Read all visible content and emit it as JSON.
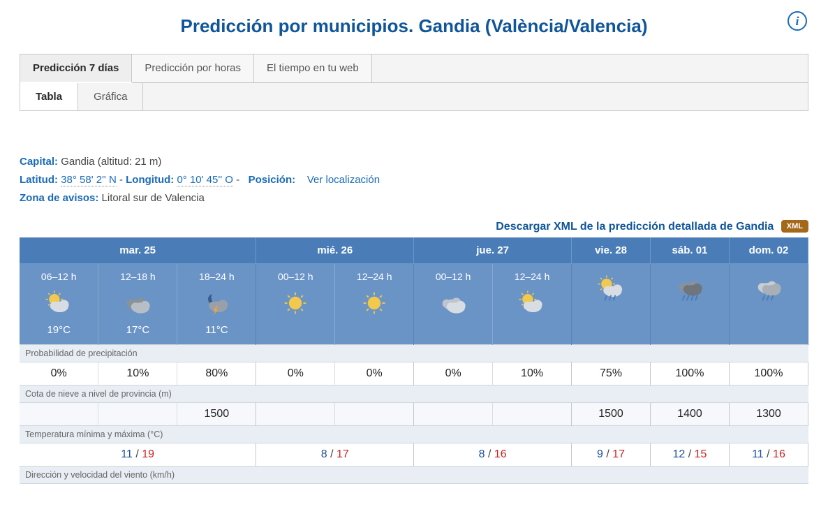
{
  "title": "Predicción por municipios. Gandia (València/Valencia)",
  "colors": {
    "primary": "#10559a",
    "header_bg": "#4a7db8",
    "slot_bg": "#6b94c6",
    "section_bg": "#e8eef4",
    "xml_badge": "#a4681b"
  },
  "tabs": {
    "main": [
      {
        "label": "Predicción 7 días",
        "active": true
      },
      {
        "label": "Predicción por horas",
        "active": false
      },
      {
        "label": "El tiempo en tu web",
        "active": false
      }
    ],
    "sub": [
      {
        "label": "Tabla",
        "active": true
      },
      {
        "label": "Gráfica",
        "active": false
      }
    ]
  },
  "meta": {
    "capital_label": "Capital:",
    "capital_value": "Gandia (altitud: 21 m)",
    "lat_label": "Latitud:",
    "lat_value": "38° 58' 2'' N",
    "lon_label": "Longitud:",
    "lon_value": "0° 10' 45'' O",
    "pos_label": "Posición:",
    "pos_link": "Ver localización",
    "zone_label": "Zona de avisos:",
    "zone_value": "Litoral sur de Valencia"
  },
  "xml_link_text": "Descargar XML de la predicción detallada de Gandia",
  "xml_badge": "XML",
  "section_labels": {
    "precip": "Probabilidad de precipitación",
    "snow": "Cota de nieve a nivel de provincia (m)",
    "temp": "Temperatura mínima y máxima (°C)",
    "wind": "Dirección y velocidad del viento (km/h)"
  },
  "days": [
    {
      "label": "mar. 25",
      "slots": [
        {
          "time": "06–12 h",
          "temp": "19°C",
          "icon": "sun-cloud"
        },
        {
          "time": "12–18 h",
          "temp": "17°C",
          "icon": "overcast"
        },
        {
          "time": "18–24 h",
          "temp": "11°C",
          "icon": "night-storm"
        }
      ],
      "precip": [
        "0%",
        "10%",
        "80%"
      ],
      "snow": [
        "",
        "",
        "1500"
      ],
      "tmin": "11",
      "tmax": "19"
    },
    {
      "label": "mié. 26",
      "slots": [
        {
          "time": "00–12 h",
          "temp": "",
          "icon": "sun"
        },
        {
          "time": "12–24 h",
          "temp": "",
          "icon": "sun"
        }
      ],
      "precip": [
        "0%",
        "0%"
      ],
      "snow": [
        "",
        ""
      ],
      "tmin": "8",
      "tmax": "17"
    },
    {
      "label": "jue. 27",
      "slots": [
        {
          "time": "00–12 h",
          "temp": "",
          "icon": "cloudy"
        },
        {
          "time": "12–24 h",
          "temp": "",
          "icon": "sun-cloud"
        }
      ],
      "precip": [
        "0%",
        "10%"
      ],
      "snow": [
        "",
        ""
      ],
      "tmin": "8",
      "tmax": "16"
    },
    {
      "label": "vie. 28",
      "slots": [
        {
          "time": "",
          "temp": "",
          "icon": "sun-rain"
        }
      ],
      "precip": [
        "75%"
      ],
      "snow": [
        "1500"
      ],
      "tmin": "9",
      "tmax": "17"
    },
    {
      "label": "sáb. 01",
      "slots": [
        {
          "time": "",
          "temp": "",
          "icon": "heavy-rain"
        }
      ],
      "precip": [
        "100%"
      ],
      "snow": [
        "1400"
      ],
      "tmin": "12",
      "tmax": "15"
    },
    {
      "label": "dom. 02",
      "slots": [
        {
          "time": "",
          "temp": "",
          "icon": "rain"
        }
      ],
      "precip": [
        "100%"
      ],
      "snow": [
        "1300"
      ],
      "tmin": "11",
      "tmax": "16"
    }
  ]
}
